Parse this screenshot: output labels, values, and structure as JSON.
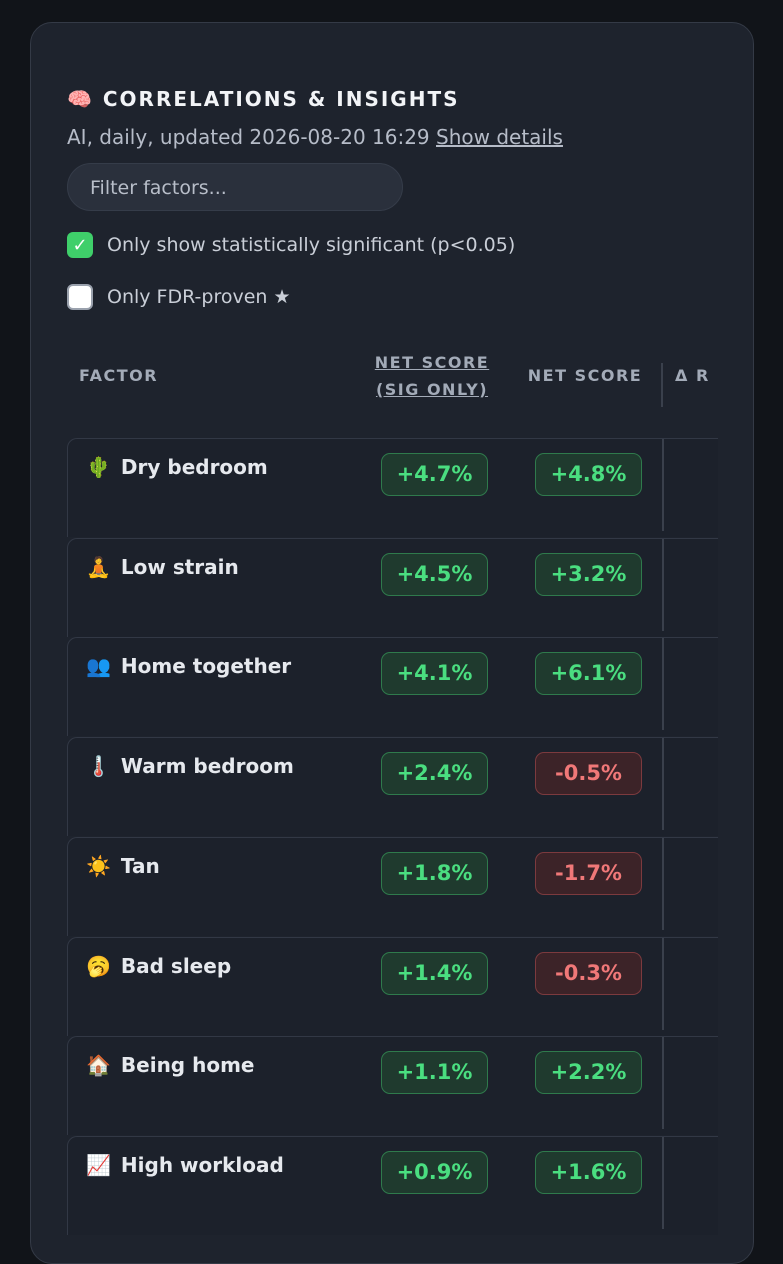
{
  "header": {
    "icon": "🧠",
    "title": "CORRELATIONS & INSIGHTS",
    "subtitle": "AI, daily, updated 2026-08-20 16:29",
    "details_link": "Show details"
  },
  "filter": {
    "placeholder": "Filter factors..."
  },
  "options": [
    {
      "label": "Only show statistically significant (p<0.05)",
      "checked": true
    },
    {
      "label": "Only FDR-proven ★",
      "checked": false
    }
  ],
  "table": {
    "columns": [
      "FACTOR",
      "NET SCORE (SIG ONLY)",
      "NET SCORE",
      "Δ R"
    ],
    "rows": [
      {
        "icon": "🌵",
        "name": "Dry bedroom",
        "sig": "+4.7%",
        "net": "+4.8%"
      },
      {
        "icon": "🧘",
        "name": "Low strain",
        "sig": "+4.5%",
        "net": "+3.2%"
      },
      {
        "icon": "👥",
        "name": "Home together",
        "sig": "+4.1%",
        "net": "+6.1%"
      },
      {
        "icon": "🌡️",
        "name": "Warm bedroom",
        "sig": "+2.4%",
        "net": "-0.5%"
      },
      {
        "icon": "☀️",
        "name": "Tan",
        "sig": "+1.8%",
        "net": "-1.7%"
      },
      {
        "icon": "🥱",
        "name": "Bad sleep",
        "sig": "+1.4%",
        "net": "-0.3%"
      },
      {
        "icon": "🏠",
        "name": "Being home",
        "sig": "+1.1%",
        "net": "+2.2%"
      },
      {
        "icon": "📈",
        "name": "High workload",
        "sig": "+0.9%",
        "net": "+1.6%"
      }
    ]
  }
}
